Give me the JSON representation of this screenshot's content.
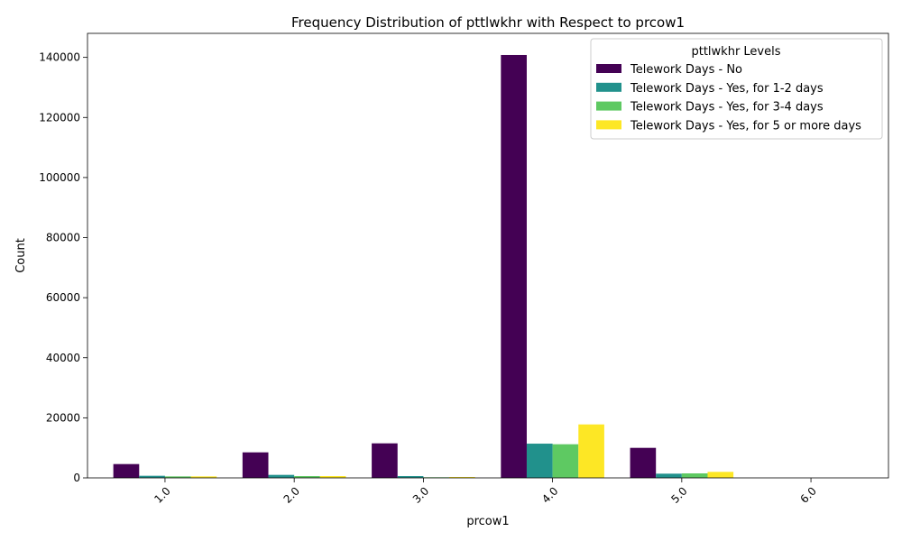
{
  "chart_data": {
    "type": "bar",
    "title": "Frequency Distribution of pttlwkhr with Respect to prcow1",
    "xlabel": "prcow1",
    "ylabel": "Count",
    "categories": [
      "1.0",
      "2.0",
      "3.0",
      "4.0",
      "5.0",
      "6.0"
    ],
    "ylim": [
      0,
      148000
    ],
    "yticks": [
      0,
      20000,
      40000,
      60000,
      80000,
      100000,
      120000,
      140000
    ],
    "grid": false,
    "legend": {
      "title": "pttlwkhr Levels",
      "placement": "top-right"
    },
    "series": [
      {
        "name": "Telework Days - No",
        "color": "#440154",
        "values": [
          4600,
          8500,
          11500,
          140800,
          10000,
          0
        ]
      },
      {
        "name": "Telework Days - Yes, for 1-2 days",
        "color": "#21918c",
        "values": [
          700,
          1000,
          600,
          11400,
          1400,
          0
        ]
      },
      {
        "name": "Telework Days - Yes, for 3-4 days",
        "color": "#5ec962",
        "values": [
          500,
          600,
          200,
          11200,
          1500,
          0
        ]
      },
      {
        "name": "Telework Days - Yes, for 5 or more days",
        "color": "#fde725",
        "values": [
          500,
          600,
          300,
          17800,
          2000,
          0
        ]
      }
    ]
  }
}
